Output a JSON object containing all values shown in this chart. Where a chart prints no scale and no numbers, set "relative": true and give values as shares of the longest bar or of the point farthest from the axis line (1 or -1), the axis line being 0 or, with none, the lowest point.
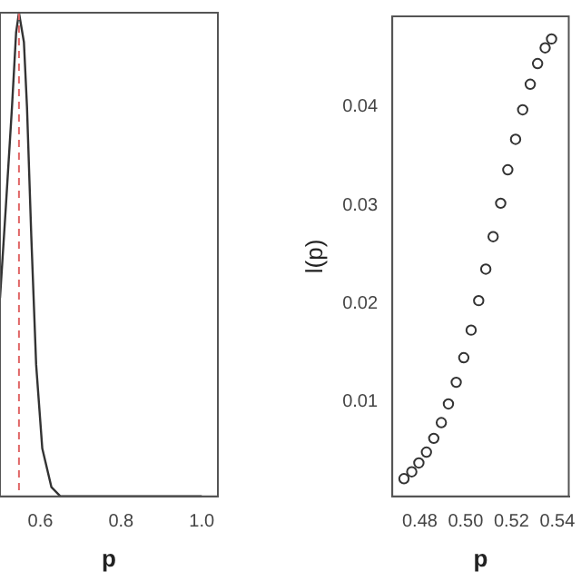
{
  "chart_data": [
    {
      "type": "line",
      "relative": true,
      "xlabel": "p",
      "xlim": [
        0.5,
        1.04
      ],
      "xticks": [
        0.6,
        0.8,
        {
          "value": 1.0,
          "label": "1.0"
        }
      ],
      "tick_labels": "x",
      "grid": false,
      "legend": false,
      "ref_lines": [
        {
          "axis": "x",
          "value": 0.547,
          "color": "#e06666",
          "line_style": "dashed"
        }
      ],
      "series": [
        {
          "color": "#333333",
          "x": [
            0.5,
            0.5146,
            0.5297,
            0.54,
            0.547,
            0.5593,
            0.5669,
            0.5775,
            0.5896,
            0.6048,
            0.6275,
            0.65,
            0.8,
            1.0
          ],
          "values": [
            0.41,
            0.6,
            0.805,
            0.96,
            1.0,
            0.939,
            0.805,
            0.539,
            0.272,
            0.099,
            0.019,
            0,
            0,
            0
          ]
        }
      ]
    },
    {
      "type": "scatter",
      "ylabel": "l(p)",
      "xlabel": "p",
      "xlim": [
        0.468,
        0.545
      ],
      "xticks": [
        0.48,
        {
          "value": 0.5,
          "label": "0.50"
        },
        0.52,
        0.54
      ],
      "ylim": [
        0.0004,
        0.0492
      ],
      "yticks": [
        0.01,
        0.02,
        0.03,
        0.04
      ],
      "grid": false,
      "legend": false,
      "marker": "circle",
      "series": [
        {
          "color": "#333333",
          "x": [
            0.4731,
            0.4765,
            0.4796,
            0.4829,
            0.4861,
            0.4894,
            0.4925,
            0.4959,
            0.4992,
            0.5024,
            0.5057,
            0.5088,
            0.512,
            0.5153,
            0.5184,
            0.5218,
            0.5249,
            0.5282,
            0.5314,
            0.5347,
            0.5375
          ],
          "values": [
            0.0022,
            0.0029,
            0.0038,
            0.0049,
            0.0063,
            0.0079,
            0.0098,
            0.012,
            0.0145,
            0.0173,
            0.0203,
            0.0235,
            0.0268,
            0.0302,
            0.0336,
            0.0367,
            0.0397,
            0.0423,
            0.0444,
            0.046,
            0.0469
          ]
        }
      ]
    }
  ]
}
